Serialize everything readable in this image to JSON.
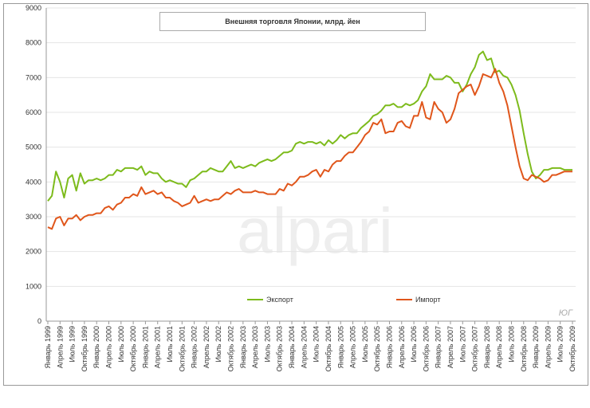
{
  "chart_data": {
    "type": "line",
    "title": "Внешняя торговля Японии, млрд. йен",
    "watermark": "alpari",
    "corner_mark": "ЮГ",
    "categories": [
      "Январь 1999",
      null,
      null,
      "Апрель 1999",
      null,
      null,
      "Июль 1999",
      null,
      null,
      "Октябрь 1999",
      null,
      null,
      "Январь 2000",
      null,
      null,
      "Апрель 2000",
      null,
      null,
      "Июль 2000",
      null,
      null,
      "Октябрь 2000",
      null,
      null,
      "Январь 2001",
      null,
      null,
      "Апрель 2001",
      null,
      null,
      "Июль 2001",
      null,
      null,
      "Октябрь 2001",
      null,
      null,
      "Январь 2002",
      null,
      null,
      "Апрель 2002",
      null,
      null,
      "Июль 2002",
      null,
      null,
      "Октябрь 2002",
      null,
      null,
      "Январь 2003",
      null,
      null,
      "Апрель 2003",
      null,
      null,
      "Июль 2003",
      null,
      null,
      "Октябрь 2003",
      null,
      null,
      "Январь 2004",
      null,
      null,
      "Апрель 2004",
      null,
      null,
      "Июль 2004",
      null,
      null,
      "Октябрь 2004",
      null,
      null,
      "Январь 2005",
      null,
      null,
      "Апрель 2005",
      null,
      null,
      "Июль 2005",
      null,
      null,
      "Октябрь 2005",
      null,
      null,
      "Январь 2006",
      null,
      null,
      "Апрель 2006",
      null,
      null,
      "Июль 2006",
      null,
      null,
      "Октябрь 2006",
      null,
      null,
      "Январь 2007",
      null,
      null,
      "Апрель 2007",
      null,
      null,
      "Июль 2007",
      null,
      null,
      "Октябрь 2007",
      null,
      null,
      "Январь 2008",
      null,
      null,
      "Апрель 2008",
      null,
      null,
      "Июль 2008",
      null,
      null,
      "Октябрь 2008",
      null,
      null,
      "Январь 2009",
      null,
      null,
      "Апрель 2009",
      null,
      null,
      "Июль 2009",
      null,
      null,
      "Октябрь 2009"
    ],
    "series": [
      {
        "name": "Экспорт",
        "color": "#7dbb1c",
        "values": [
          3450,
          3600,
          4300,
          4000,
          3550,
          4100,
          4200,
          3750,
          4250,
          3950,
          4050,
          4050,
          4100,
          4050,
          4100,
          4200,
          4200,
          4350,
          4300,
          4400,
          4400,
          4400,
          4350,
          4450,
          4200,
          4300,
          4250,
          4250,
          4100,
          4000,
          4050,
          4000,
          3950,
          3950,
          3850,
          4050,
          4100,
          4200,
          4300,
          4300,
          4400,
          4350,
          4300,
          4300,
          4450,
          4600,
          4400,
          4450,
          4400,
          4450,
          4500,
          4450,
          4550,
          4600,
          4650,
          4600,
          4650,
          4750,
          4850,
          4850,
          4900,
          5100,
          5150,
          5100,
          5150,
          5150,
          5100,
          5150,
          5050,
          5200,
          5100,
          5200,
          5350,
          5250,
          5350,
          5400,
          5400,
          5550,
          5650,
          5750,
          5900,
          5950,
          6050,
          6200,
          6200,
          6250,
          6150,
          6150,
          6250,
          6200,
          6250,
          6350,
          6600,
          6750,
          7100,
          6950,
          6950,
          6950,
          7050,
          7000,
          6850,
          6850,
          6600,
          6800,
          7100,
          7300,
          7650,
          7750,
          7500,
          7550,
          7150,
          7200,
          7050,
          7000,
          6800,
          6500,
          6050,
          5400,
          4800,
          4300,
          4100,
          4200,
          4350,
          4350,
          4400,
          4400,
          4400,
          4350,
          4350,
          4350
        ]
      },
      {
        "name": "Импорт",
        "color": "#e0561b",
        "values": [
          2700,
          2650,
          2950,
          3000,
          2750,
          2950,
          2950,
          3050,
          2900,
          3000,
          3050,
          3050,
          3100,
          3100,
          3250,
          3300,
          3200,
          3350,
          3400,
          3550,
          3550,
          3650,
          3600,
          3850,
          3650,
          3700,
          3750,
          3650,
          3700,
          3550,
          3550,
          3450,
          3400,
          3300,
          3350,
          3400,
          3600,
          3400,
          3450,
          3500,
          3450,
          3500,
          3500,
          3600,
          3700,
          3650,
          3750,
          3800,
          3700,
          3700,
          3700,
          3750,
          3700,
          3700,
          3650,
          3650,
          3650,
          3800,
          3750,
          3950,
          3900,
          4000,
          4150,
          4150,
          4200,
          4300,
          4350,
          4150,
          4350,
          4300,
          4500,
          4600,
          4600,
          4750,
          4850,
          4850,
          5000,
          5150,
          5350,
          5450,
          5700,
          5650,
          5800,
          5400,
          5450,
          5450,
          5700,
          5750,
          5600,
          5550,
          5900,
          5900,
          6300,
          5850,
          5800,
          6300,
          6100,
          6000,
          5700,
          5800,
          6100,
          6550,
          6650,
          6750,
          6800,
          6500,
          6750,
          7100,
          7050,
          7000,
          7250,
          6850,
          6600,
          6200,
          5600,
          5000,
          4450,
          4100,
          4050,
          4200,
          4150,
          4100,
          4000,
          4050,
          4200,
          4200,
          4250,
          4300,
          4300,
          4300
        ]
      }
    ],
    "ylim": [
      0,
      9000
    ],
    "yticks": [
      0,
      1000,
      2000,
      3000,
      4000,
      5000,
      6000,
      7000,
      8000,
      9000
    ],
    "grid": true
  }
}
